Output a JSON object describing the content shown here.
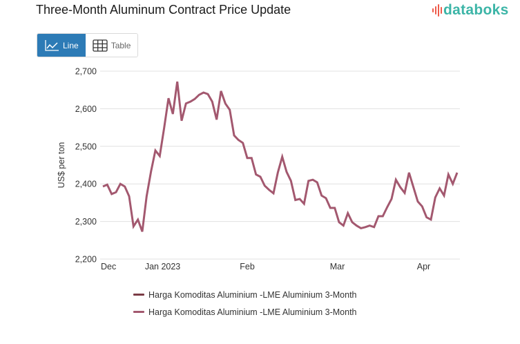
{
  "header": {
    "title": "Three-Month Aluminum Contract Price Update",
    "logo_text": "databoks",
    "logo_icon": "bar-pulse-icon"
  },
  "view_toggle": {
    "options": [
      {
        "label": "Line",
        "icon": "line-chart-icon",
        "active": true
      },
      {
        "label": "Table",
        "icon": "table-grid-icon",
        "active": false
      }
    ]
  },
  "colors": {
    "accent": "#2d7bb6",
    "series_1": "#7a3b45",
    "series_2": "#a3586f",
    "logo_teal": "#3cb5a7",
    "logo_red": "#ee5a4a"
  },
  "chart_data": {
    "type": "line",
    "title": "Three-Month Aluminum Contract Price Update",
    "xlabel": "",
    "ylabel": "US$ per ton",
    "ylim": [
      2200,
      2700
    ],
    "yticks": [
      2200,
      2300,
      2400,
      2500,
      2600,
      2700
    ],
    "ytick_labels": [
      "2,200",
      "2,300",
      "2,400",
      "2,500",
      "2,600",
      "2,700"
    ],
    "xticks": [
      {
        "label": "Dec",
        "index": 1
      },
      {
        "label": "Jan 2023",
        "index": 11.5
      },
      {
        "label": "Feb",
        "index": 33.2
      },
      {
        "label": "Mar",
        "index": 53.8
      },
      {
        "label": "Apr",
        "index": 73.7
      }
    ],
    "grid": true,
    "legend_position": "bottom",
    "legend": [
      "Harga Komoditas Aluminium -LME Aluminium 3-Month",
      "Harga Komoditas Aluminium -LME Aluminium 3-Month"
    ],
    "series": [
      {
        "name": "Harga Komoditas Aluminium -LME Aluminium 3-Month",
        "values": [
          2393,
          2398,
          2373,
          2378,
          2400,
          2393,
          2367,
          2287,
          2305,
          2273,
          2367,
          2433,
          2489,
          2474,
          2549,
          2628,
          2586,
          2672,
          2568,
          2614,
          2619,
          2626,
          2637,
          2643,
          2639,
          2619,
          2571,
          2647,
          2614,
          2597,
          2529,
          2517,
          2509,
          2469,
          2469,
          2425,
          2419,
          2395,
          2384,
          2375,
          2430,
          2472,
          2432,
          2408,
          2357,
          2360,
          2347,
          2408,
          2411,
          2404,
          2369,
          2362,
          2336,
          2336,
          2298,
          2289,
          2322,
          2298,
          2289,
          2282,
          2285,
          2289,
          2285,
          2314,
          2314,
          2338,
          2360,
          2411,
          2391,
          2376,
          2430,
          2391,
          2353,
          2340,
          2311,
          2305,
          2364,
          2388,
          2369,
          2425,
          2400,
          2430
        ]
      }
    ]
  }
}
